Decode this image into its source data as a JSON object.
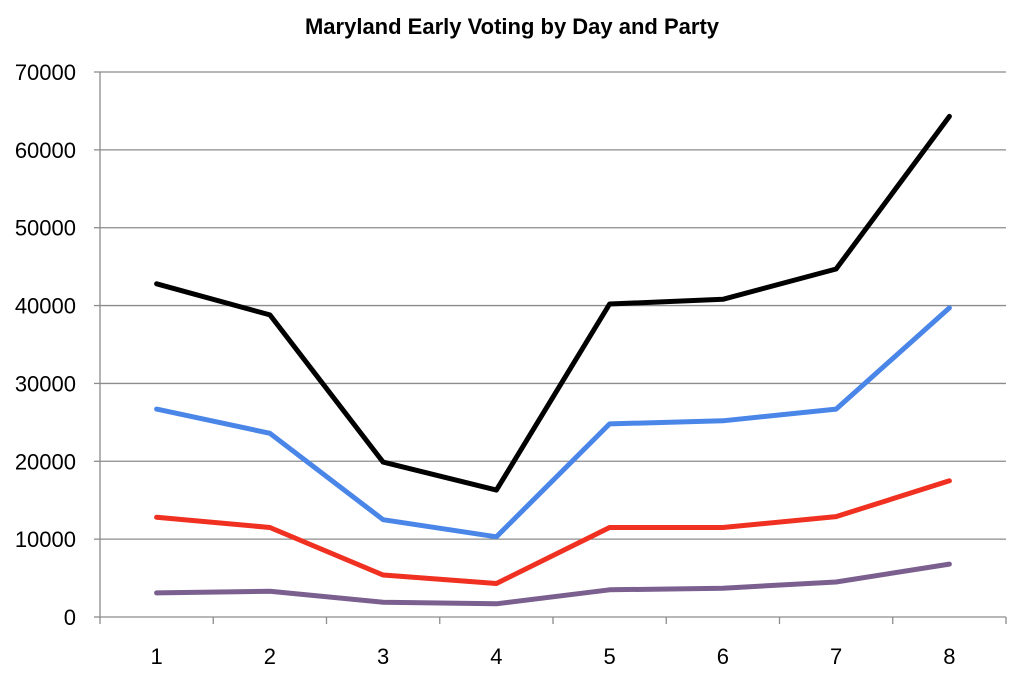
{
  "chart_data": {
    "type": "line",
    "title": "Maryland Early Voting by Day and Party",
    "xlabel": "",
    "ylabel": "",
    "categories": [
      "1",
      "2",
      "3",
      "4",
      "5",
      "6",
      "7",
      "8"
    ],
    "ylim": [
      0,
      70000
    ],
    "yticks": [
      0,
      10000,
      20000,
      30000,
      40000,
      50000,
      60000,
      70000
    ],
    "grid": true,
    "legend": "none",
    "series": [
      {
        "color": "#000000",
        "values": [
          42800,
          38800,
          19900,
          16300,
          40200,
          40800,
          44700,
          64300
        ]
      },
      {
        "color": "#4a86e8",
        "values": [
          26700,
          23600,
          12500,
          10300,
          24800,
          25200,
          26700,
          39700
        ]
      },
      {
        "color": "#f03020",
        "values": [
          12800,
          11500,
          5400,
          4300,
          11500,
          11500,
          12900,
          17500
        ]
      },
      {
        "color": "#7a5f8f",
        "values": [
          3100,
          3300,
          1900,
          1700,
          3500,
          3700,
          4500,
          6800
        ]
      }
    ]
  }
}
